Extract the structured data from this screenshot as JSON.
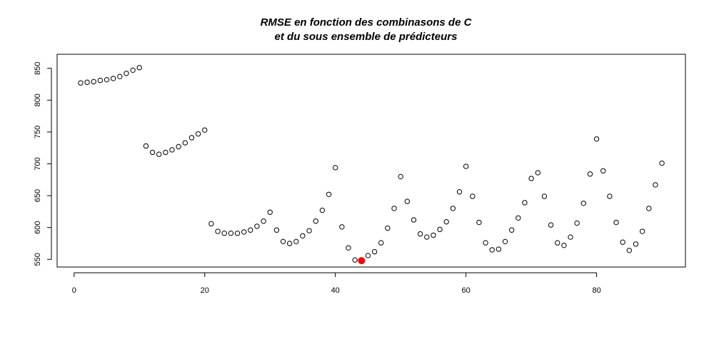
{
  "chart_data": {
    "type": "scatter",
    "title": "RMSE en fonction des combinasons de C\n  et du sous ensemble de prédicteurs",
    "xlabel": "",
    "ylabel": "",
    "xlim": [
      -2.6,
      93.6
    ],
    "ylim": [
      538,
      872
    ],
    "xticks": [
      0,
      20,
      40,
      60,
      80
    ],
    "yticks": [
      550,
      600,
      650,
      700,
      750,
      800,
      850
    ],
    "grid": false,
    "legend": "none",
    "point_color": "#000000",
    "highlight_color": "#ff0000",
    "x": [
      1,
      2,
      3,
      4,
      5,
      6,
      7,
      8,
      9,
      10,
      11,
      12,
      13,
      14,
      15,
      16,
      17,
      18,
      19,
      20,
      21,
      22,
      23,
      24,
      25,
      26,
      27,
      28,
      29,
      30,
      31,
      32,
      33,
      34,
      35,
      36,
      37,
      38,
      39,
      40,
      41,
      42,
      43,
      44,
      45,
      46,
      47,
      48,
      49,
      50,
      51,
      52,
      53,
      54,
      55,
      56,
      57,
      58,
      59,
      60,
      61,
      62,
      63,
      64,
      65,
      66,
      67,
      68,
      69,
      70,
      71,
      72,
      73,
      74,
      75,
      76,
      77,
      78,
      79,
      80,
      81,
      82,
      83,
      84,
      85,
      86,
      87,
      88,
      89,
      90
    ],
    "y": [
      827,
      828,
      829,
      831,
      832,
      834,
      837,
      842,
      847,
      851,
      728,
      718,
      715,
      718,
      722,
      727,
      733,
      741,
      747,
      753,
      606,
      594,
      591,
      591,
      591,
      593,
      596,
      602,
      610,
      624,
      596,
      578,
      575,
      578,
      587,
      595,
      610,
      627,
      652,
      694,
      601,
      568,
      549,
      548,
      556,
      562,
      576,
      599,
      630,
      680,
      641,
      612,
      590,
      585,
      588,
      597,
      609,
      630,
      656,
      696,
      649,
      608,
      576,
      565,
      566,
      578,
      596,
      615,
      639,
      677,
      686,
      649,
      604,
      576,
      572,
      585,
      607,
      638,
      684,
      739,
      689,
      649,
      608,
      577,
      564,
      574,
      594,
      630,
      667,
      701
    ],
    "highlight": {
      "x": 44,
      "y": 548
    }
  }
}
